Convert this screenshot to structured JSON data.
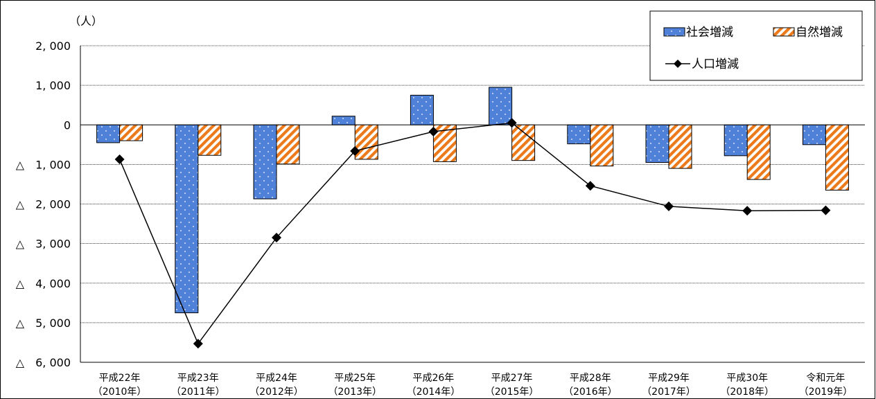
{
  "chart_data": {
    "type": "bar",
    "unit_label": "（人）",
    "categories": [
      {
        "line1": "平成22年",
        "line2": "（2010年）"
      },
      {
        "line1": "平成23年",
        "line2": "（2011年）"
      },
      {
        "line1": "平成24年",
        "line2": "（2012年）"
      },
      {
        "line1": "平成25年",
        "line2": "（2013年）"
      },
      {
        "line1": "平成26年",
        "line2": "（2014年）"
      },
      {
        "line1": "平成27年",
        "line2": "（2015年）"
      },
      {
        "line1": "平成28年",
        "line2": "（2016年）"
      },
      {
        "line1": "平成29年",
        "line2": "（2017年）"
      },
      {
        "line1": "平成30年",
        "line2": "（2018年）"
      },
      {
        "line1": "令和元年",
        "line2": "（2019年）"
      }
    ],
    "series": [
      {
        "name": "社会増減",
        "kind": "bar",
        "color": "#4f81d8",
        "values": [
          -450,
          -4750,
          -1870,
          220,
          750,
          950,
          -480,
          -950,
          -780,
          -500
        ]
      },
      {
        "name": "自然増減",
        "kind": "bar",
        "color": "#ec7a1a",
        "values": [
          -400,
          -770,
          -990,
          -870,
          -930,
          -900,
          -1040,
          -1100,
          -1380,
          -1650
        ]
      },
      {
        "name": "人口増減",
        "kind": "line",
        "color": "#000000",
        "values": [
          -870,
          -5530,
          -2850,
          -660,
          -170,
          50,
          -1540,
          -2060,
          -2170,
          -2160
        ]
      }
    ],
    "ylim": [
      -6000,
      2000
    ],
    "yticks": [
      {
        "value": 2000,
        "label": "2, 000"
      },
      {
        "value": 1000,
        "label": "1, 000"
      },
      {
        "value": 0,
        "label": "0"
      },
      {
        "value": -1000,
        "label": "△　1, 000"
      },
      {
        "value": -2000,
        "label": "△　2, 000"
      },
      {
        "value": -3000,
        "label": "△　3, 000"
      },
      {
        "value": -4000,
        "label": "△　4, 000"
      },
      {
        "value": -5000,
        "label": "△　5, 000"
      },
      {
        "value": -6000,
        "label": "△　6, 000"
      }
    ],
    "grid": true,
    "legend_position": "top-right"
  }
}
